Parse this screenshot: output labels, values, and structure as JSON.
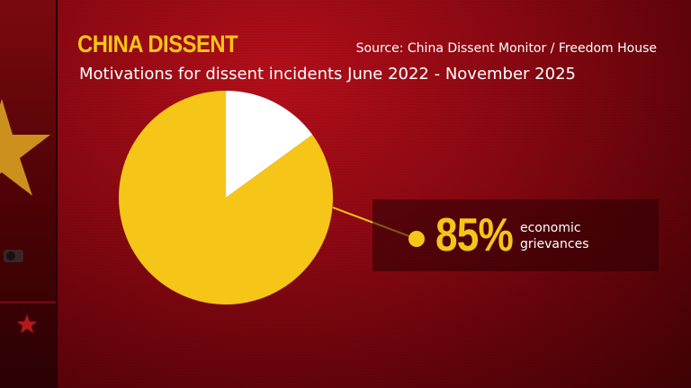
{
  "header": {
    "title": "CHINA DISSENT",
    "source": "Source: China Dissent Monitor / Freedom House",
    "subtitle": "Motivations for dissent incidents June 2022 - November 2025"
  },
  "colors": {
    "accent": "#f5c518",
    "remainder": "#ffffff",
    "background": "#8a0812"
  },
  "chart_data": {
    "type": "pie",
    "slices": [
      {
        "label": "economic grievances",
        "value": 85,
        "color": "#f5c518"
      },
      {
        "label": "",
        "value": 15,
        "color": "#ffffff"
      }
    ],
    "callout": {
      "value_text": "85%",
      "label": "economic grievances"
    }
  }
}
